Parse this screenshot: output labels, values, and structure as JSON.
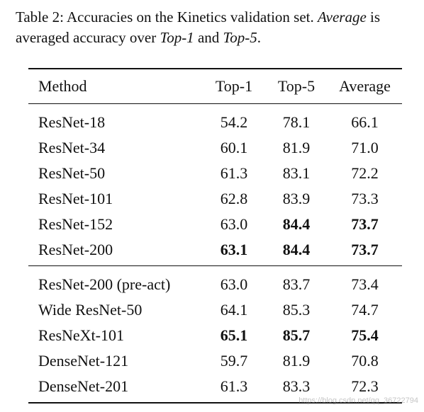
{
  "caption": {
    "label": "Table 2:",
    "part1": " Accuracies on the Kinetics validation set. ",
    "average_term": "Average",
    "part2": " is averaged accuracy over ",
    "top1_term": "Top-1",
    "part3": " and ",
    "top5_term": "Top-5",
    "part4": "."
  },
  "table": {
    "headers": {
      "method": "Method",
      "top1": "Top-1",
      "top5": "Top-5",
      "average": "Average"
    },
    "group1": [
      {
        "method": "ResNet-18",
        "top1": "54.2",
        "top5": "78.1",
        "average": "66.1",
        "bold_top1": false,
        "bold_top5": false,
        "bold_avg": false
      },
      {
        "method": "ResNet-34",
        "top1": "60.1",
        "top5": "81.9",
        "average": "71.0",
        "bold_top1": false,
        "bold_top5": false,
        "bold_avg": false
      },
      {
        "method": "ResNet-50",
        "top1": "61.3",
        "top5": "83.1",
        "average": "72.2",
        "bold_top1": false,
        "bold_top5": false,
        "bold_avg": false
      },
      {
        "method": "ResNet-101",
        "top1": "62.8",
        "top5": "83.9",
        "average": "73.3",
        "bold_top1": false,
        "bold_top5": false,
        "bold_avg": false
      },
      {
        "method": "ResNet-152",
        "top1": "63.0",
        "top5": "84.4",
        "average": "73.7",
        "bold_top1": false,
        "bold_top5": true,
        "bold_avg": true
      },
      {
        "method": "ResNet-200",
        "top1": "63.1",
        "top5": "84.4",
        "average": "73.7",
        "bold_top1": true,
        "bold_top5": true,
        "bold_avg": true
      }
    ],
    "group2": [
      {
        "method": "ResNet-200 (pre-act)",
        "top1": "63.0",
        "top5": "83.7",
        "average": "73.4",
        "bold_top1": false,
        "bold_top5": false,
        "bold_avg": false
      },
      {
        "method": "Wide ResNet-50",
        "top1": "64.1",
        "top5": "85.3",
        "average": "74.7",
        "bold_top1": false,
        "bold_top5": false,
        "bold_avg": false
      },
      {
        "method": "ResNeXt-101",
        "top1": "65.1",
        "top5": "85.7",
        "average": "75.4",
        "bold_top1": true,
        "bold_top5": true,
        "bold_avg": true
      },
      {
        "method": "DenseNet-121",
        "top1": "59.7",
        "top5": "81.9",
        "average": "70.8",
        "bold_top1": false,
        "bold_top5": false,
        "bold_avg": false
      },
      {
        "method": "DenseNet-201",
        "top1": "61.3",
        "top5": "83.3",
        "average": "72.3",
        "bold_top1": false,
        "bold_top5": false,
        "bold_avg": false
      }
    ]
  },
  "watermark": "https://blog.csdn.net/qq_36722794"
}
